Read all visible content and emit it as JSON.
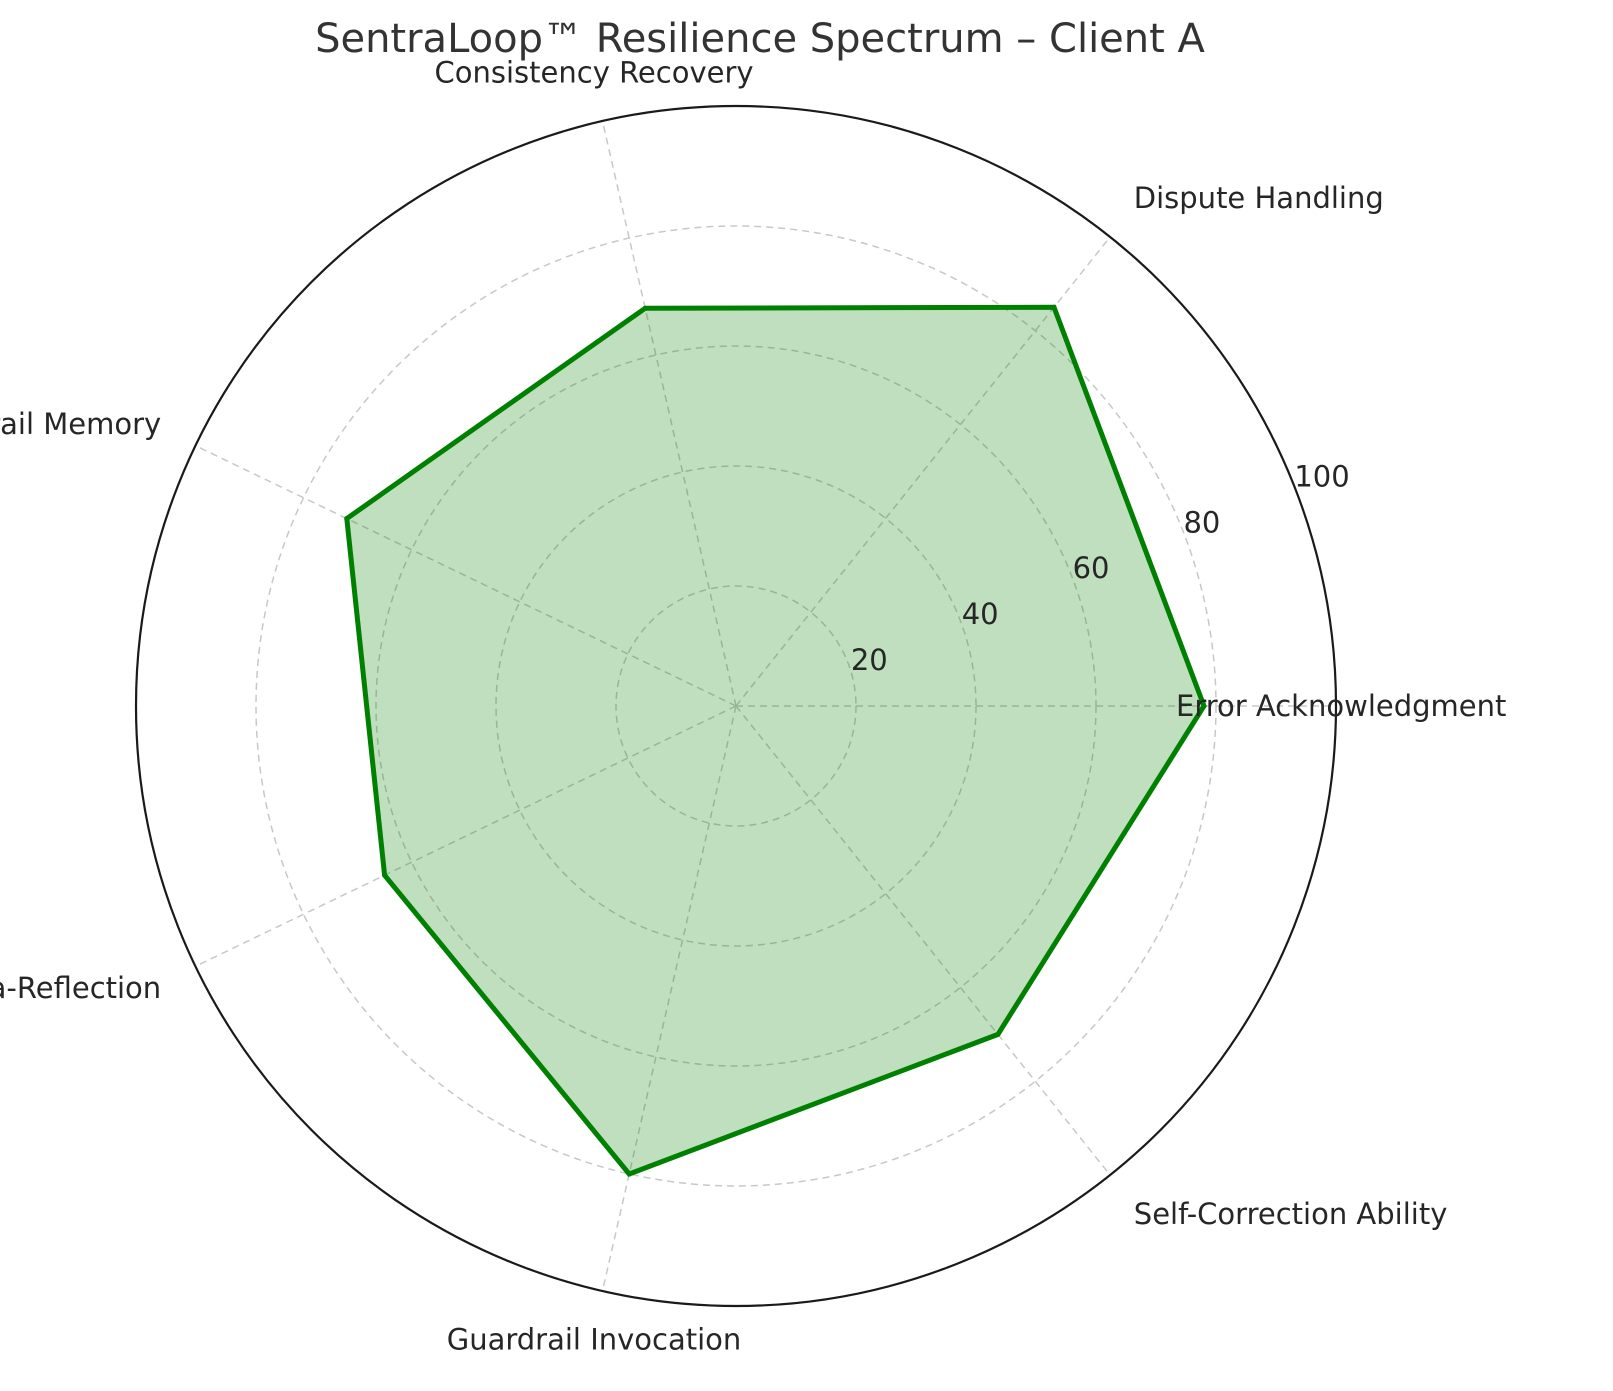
{
  "chart_data": {
    "type": "radar",
    "title": "SentraLoop™ Resilience Spectrum – Client A",
    "categories": [
      "Error Acknowledgment",
      "Dispute Handling",
      "Consistency Recovery",
      "Audit Trail Memory",
      "Meta-Reflection",
      "Guardrail Invocation",
      "Self-Correction Ability"
    ],
    "series": [
      {
        "values": [
          78,
          85,
          68,
          72,
          65,
          80,
          70
        ]
      }
    ],
    "rlim": [
      0,
      100
    ],
    "rticks": [
      20,
      40,
      60,
      80,
      100
    ],
    "rtick_labels": [
      "20",
      "40",
      "60",
      "80",
      "100"
    ],
    "grid": true,
    "line_color": "#008000",
    "fill_color": "#008000",
    "fill_opacity": 0.25
  }
}
